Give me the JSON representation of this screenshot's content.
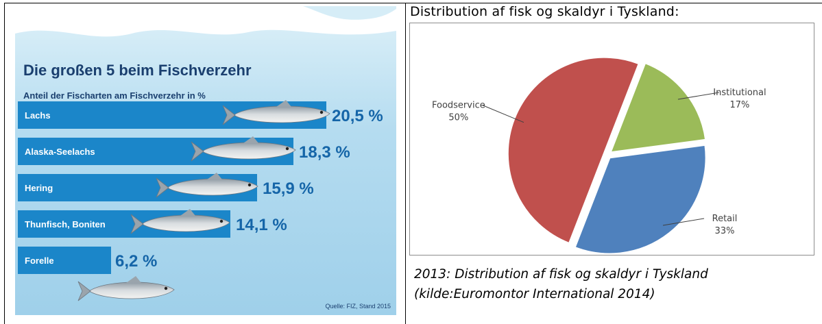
{
  "chart_data": [
    {
      "type": "bar",
      "title": "Die großen 5 beim Fischverzehr",
      "subtitle": "Anteil der Fischarten am Fischverzehr in %",
      "categories": [
        "Lachs",
        "Alaska-Seelachs",
        "Hering",
        "Thunfisch, Boniten",
        "Forelle"
      ],
      "values": [
        20.5,
        18.3,
        15.9,
        14.1,
        6.2
      ],
      "value_labels": [
        "20,5 %",
        "18,3 %",
        "15,9 %",
        "14,1 %",
        "6,2 %"
      ],
      "orientation": "horizontal",
      "source": "Quelle: FIZ, Stand 2015",
      "colors": {
        "bar": "#1b86c9",
        "value_text": "#1565a8",
        "title_text": "#1a3f6f",
        "background_top": "#cfe9f5",
        "background": "#a9d6ee"
      }
    },
    {
      "type": "pie",
      "title": "Distribution af fisk og skaldyr i Tyskland:",
      "slices": [
        {
          "label": "Institutional",
          "value": 17,
          "value_label": "17%",
          "color": "#9bbb59"
        },
        {
          "label": "Retail",
          "value": 33,
          "value_label": "33%",
          "color": "#4f81bd"
        },
        {
          "label": "Foodservice",
          "value": 50,
          "value_label": "50%",
          "color": "#c0504d"
        }
      ],
      "caption_lines": [
        "2013: Distribution af fisk og skaldyr i Tyskland",
        "(kilde:Euromontor International 2014)"
      ]
    }
  ]
}
